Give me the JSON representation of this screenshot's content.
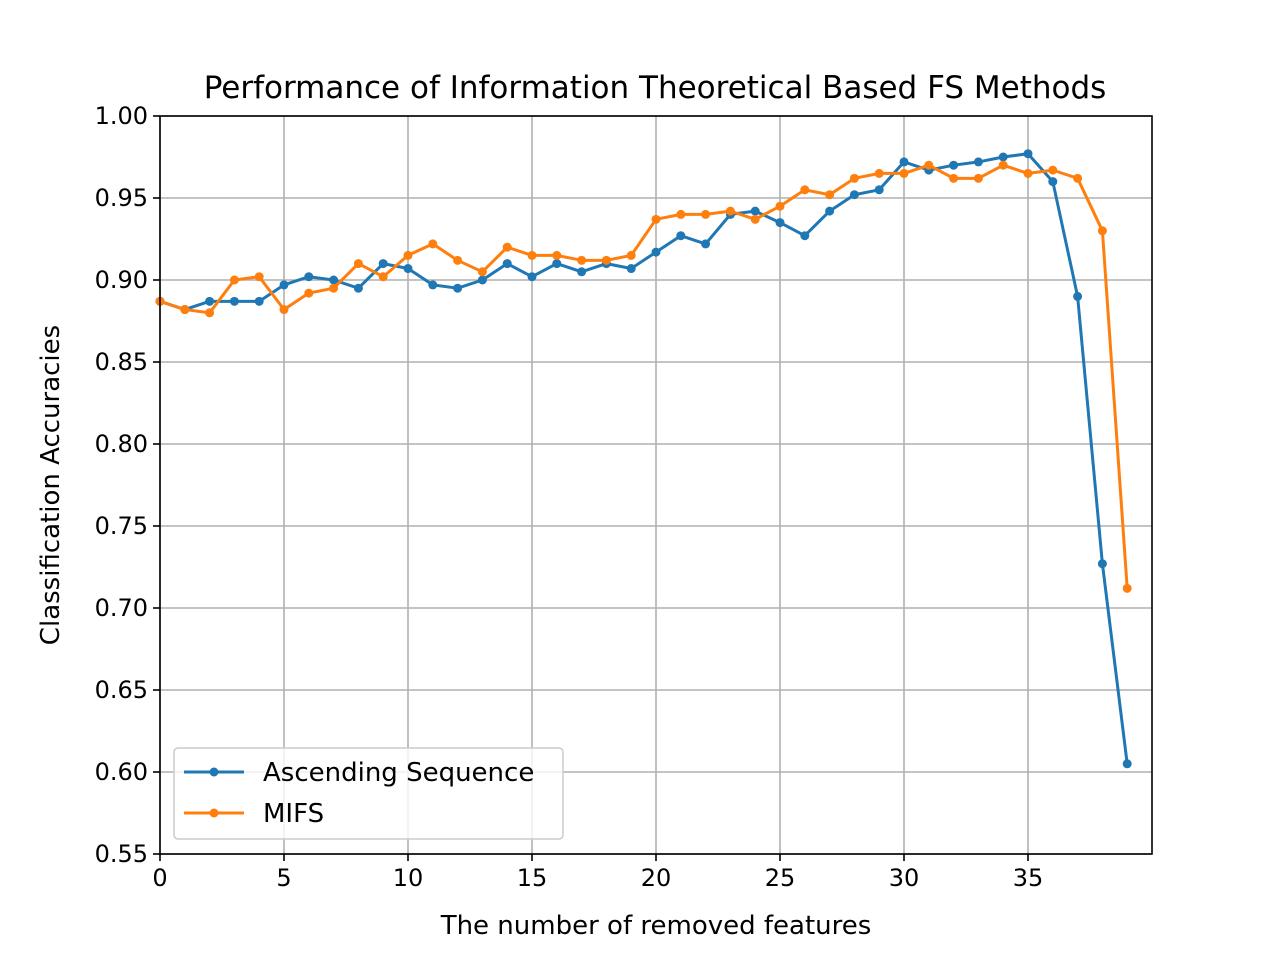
{
  "chart_data": {
    "type": "line",
    "title": "Performance of Information Theoretical Based FS Methods",
    "xlabel": "The number of removed features",
    "ylabel": "Classification Accuracies",
    "xlim": [
      0,
      40
    ],
    "ylim": [
      0.55,
      1.0
    ],
    "xticks": [
      "0",
      "5",
      "10",
      "15",
      "20",
      "25",
      "30",
      "35"
    ],
    "yticks": [
      "0.55",
      "0.60",
      "0.65",
      "0.70",
      "0.75",
      "0.80",
      "0.85",
      "0.90",
      "0.95",
      "1.00"
    ],
    "grid": true,
    "legend_position": "lower-left",
    "x": [
      0,
      1,
      2,
      3,
      4,
      5,
      6,
      7,
      8,
      9,
      10,
      11,
      12,
      13,
      14,
      15,
      16,
      17,
      18,
      19,
      20,
      21,
      22,
      23,
      24,
      25,
      26,
      27,
      28,
      29,
      30,
      31,
      32,
      33,
      34,
      35,
      36,
      37,
      38,
      39
    ],
    "series": [
      {
        "name": "Ascending Sequence",
        "color": "#1f77b4",
        "values": [
          0.887,
          0.882,
          0.887,
          0.887,
          0.887,
          0.897,
          0.902,
          0.9,
          0.895,
          0.91,
          0.907,
          0.897,
          0.895,
          0.9,
          0.91,
          0.902,
          0.91,
          0.905,
          0.91,
          0.907,
          0.917,
          0.927,
          0.922,
          0.94,
          0.942,
          0.935,
          0.927,
          0.942,
          0.952,
          0.955,
          0.972,
          0.967,
          0.97,
          0.972,
          0.975,
          0.977,
          0.96,
          0.89,
          0.727,
          0.605
        ]
      },
      {
        "name": "MIFS",
        "color": "#ff7f0e",
        "values": [
          0.887,
          0.882,
          0.88,
          0.9,
          0.902,
          0.882,
          0.892,
          0.895,
          0.91,
          0.902,
          0.915,
          0.922,
          0.912,
          0.905,
          0.92,
          0.915,
          0.915,
          0.912,
          0.912,
          0.915,
          0.937,
          0.94,
          0.94,
          0.942,
          0.937,
          0.945,
          0.955,
          0.952,
          0.962,
          0.965,
          0.965,
          0.97,
          0.962,
          0.962,
          0.97,
          0.965,
          0.967,
          0.962,
          0.93,
          0.712
        ]
      }
    ]
  }
}
